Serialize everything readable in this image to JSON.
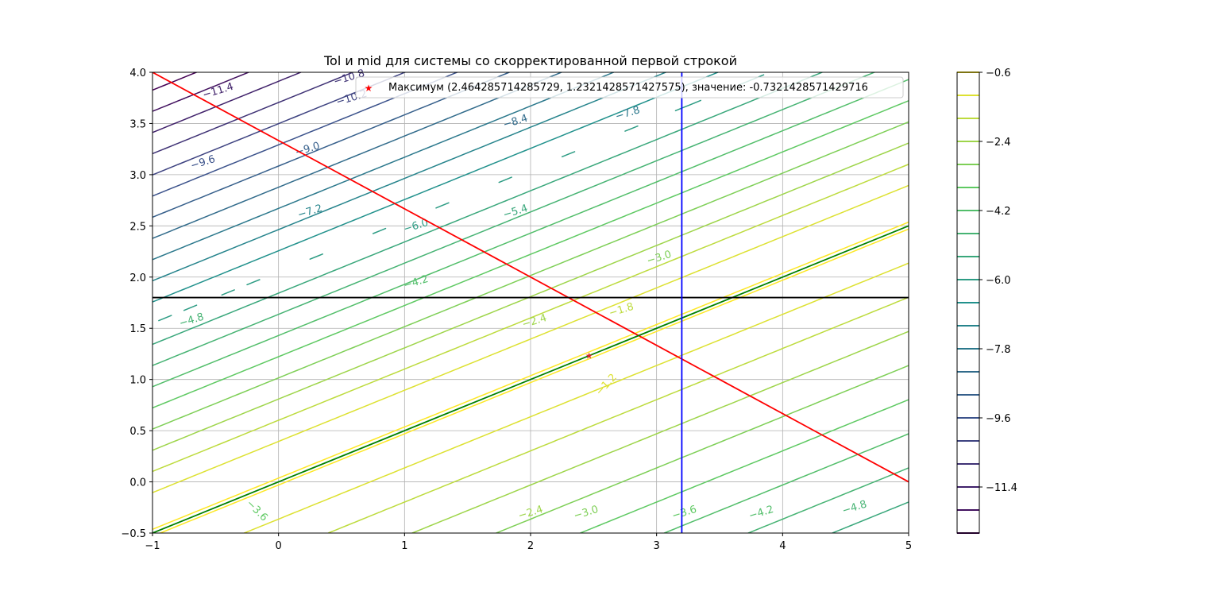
{
  "chart_data": {
    "type": "contour",
    "title": "Tol и mid для системы со скорректированной первой строкой",
    "xlabel": "",
    "ylabel": "",
    "xlim": [
      -1,
      5
    ],
    "ylim": [
      -0.5,
      4
    ],
    "grid": true,
    "x_ticks": [
      -1,
      0,
      1,
      2,
      3,
      4,
      5
    ],
    "x_tick_labels": [
      "−1",
      "0",
      "1",
      "2",
      "3",
      "4",
      "5"
    ],
    "y_ticks": [
      -0.5,
      0.0,
      0.5,
      1.0,
      1.5,
      2.0,
      2.5,
      3.0,
      3.5,
      4.0
    ],
    "y_tick_labels": [
      "−0.5",
      "0.0",
      "0.5",
      "1.0",
      "1.5",
      "2.0",
      "2.5",
      "3.0",
      "3.5",
      "4.0"
    ],
    "contour_levels": [
      -12.6,
      -12.0,
      -11.4,
      -10.8,
      -10.2,
      -9.6,
      -9.0,
      -8.4,
      -7.8,
      -7.2,
      -6.6,
      -6.0,
      -5.4,
      -4.8,
      -4.2,
      -3.6,
      -3.0,
      -2.4,
      -1.8,
      -1.2,
      -0.6
    ],
    "contour_labels": [
      {
        "x": -0.48,
        "y": 3.82,
        "text": "−11.4",
        "angle": -17
      },
      {
        "x": 0.56,
        "y": 3.95,
        "text": "−10.8",
        "angle": -17
      },
      {
        "x": 0.58,
        "y": 3.75,
        "text": "−10.2",
        "angle": -17
      },
      {
        "x": -0.6,
        "y": 3.12,
        "text": "−9.6",
        "angle": -17
      },
      {
        "x": 0.23,
        "y": 3.25,
        "text": "−9.0",
        "angle": -17
      },
      {
        "x": 1.88,
        "y": 3.52,
        "text": "−8.4",
        "angle": -17
      },
      {
        "x": 2.77,
        "y": 3.6,
        "text": "−7.8",
        "angle": -17
      },
      {
        "x": 0.25,
        "y": 2.64,
        "text": "−7.2",
        "angle": -17
      },
      {
        "x": 1.09,
        "y": 2.5,
        "text": "−6.0",
        "angle": -17
      },
      {
        "x": 1.88,
        "y": 2.64,
        "text": "−5.4",
        "angle": -17
      },
      {
        "x": -0.69,
        "y": 1.58,
        "text": "−4.8",
        "angle": -17
      },
      {
        "x": 1.09,
        "y": 1.95,
        "text": "−4.2",
        "angle": -17
      },
      {
        "x": 2.03,
        "y": 1.57,
        "text": "−2.4",
        "angle": -17
      },
      {
        "x": 3.02,
        "y": 2.19,
        "text": "−3.0",
        "angle": -17
      },
      {
        "x": 2.72,
        "y": 1.68,
        "text": "−1.8",
        "angle": -17
      },
      {
        "x": 2.6,
        "y": 0.95,
        "text": "−1.2",
        "angle": -47
      },
      {
        "x": -0.17,
        "y": -0.28,
        "text": "−3.6",
        "angle": 45
      },
      {
        "x": 2.0,
        "y": -0.3,
        "text": "−2.4",
        "angle": -17
      },
      {
        "x": 2.44,
        "y": -0.3,
        "text": "−3.0",
        "angle": -17
      },
      {
        "x": 3.22,
        "y": -0.3,
        "text": "−3.6",
        "angle": -17
      },
      {
        "x": 3.83,
        "y": -0.3,
        "text": "−4.2",
        "angle": -17
      },
      {
        "x": 4.57,
        "y": -0.25,
        "text": "−4.8",
        "angle": -17
      }
    ],
    "lines": [
      {
        "name": "red",
        "color": "#ff0000",
        "x": [
          -1,
          5
        ],
        "y": [
          4.0,
          0.0
        ]
      },
      {
        "name": "green",
        "color": "#008000",
        "x": [
          -1,
          5
        ],
        "y": [
          -0.5,
          2.5
        ]
      },
      {
        "name": "black",
        "color": "#000000",
        "x": [
          -1,
          5
        ],
        "y": [
          1.8,
          1.8
        ]
      },
      {
        "name": "blue",
        "color": "#0000ff",
        "x": [
          3.2,
          3.2
        ],
        "y": [
          -0.5,
          4.0
        ]
      }
    ],
    "maximum_point": {
      "x": 2.464285714285729,
      "y": 1.2321428571427575,
      "value": -0.7321428571429716,
      "color": "#d62728"
    },
    "legend": {
      "placement": "top",
      "entries": [
        "Максимум (2.464285714285729, 1.2321428571427575), значение: -0.7321428571429716"
      ]
    },
    "colorbar": {
      "tick_values": [
        -0.6,
        -2.4,
        -4.2,
        -6.0,
        -7.8,
        -9.6,
        -11.4
      ],
      "tick_labels": [
        "−0.6",
        "−2.4",
        "−4.2",
        "−6.0",
        "−7.8",
        "−9.6",
        "−11.4"
      ],
      "range": [
        -12.6,
        -0.6
      ]
    }
  }
}
